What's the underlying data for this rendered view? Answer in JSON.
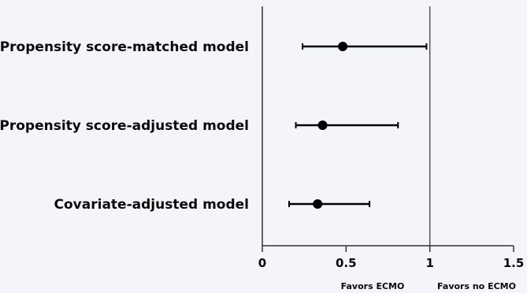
{
  "chart_data": {
    "type": "scatter",
    "subtype": "forest-plot",
    "title": "",
    "xlabel": "",
    "ylabel": "",
    "xlim": [
      0,
      1.5
    ],
    "x_ticks": [
      {
        "value": 0,
        "label": "0"
      },
      {
        "value": 0.5,
        "label": "0.5"
      },
      {
        "value": 1,
        "label": "1"
      },
      {
        "value": 1.5,
        "label": "1.5"
      }
    ],
    "reference_line": 1,
    "grid": false,
    "rows": [
      {
        "label": "Propensity score-matched model",
        "estimate": 0.48,
        "lower": 0.24,
        "upper": 0.98
      },
      {
        "label": "Propensity score-adjusted model",
        "estimate": 0.36,
        "lower": 0.2,
        "upper": 0.81
      },
      {
        "label": "Covariate-adjusted model",
        "estimate": 0.33,
        "lower": 0.16,
        "upper": 0.64
      }
    ],
    "favor_labels": {
      "left": "Favors ECMO",
      "right": "Favors no ECMO"
    },
    "colors": {
      "background": "#f3f5fa",
      "marker": "#000000",
      "axis": "#333333",
      "reference_line": "#555555"
    }
  }
}
